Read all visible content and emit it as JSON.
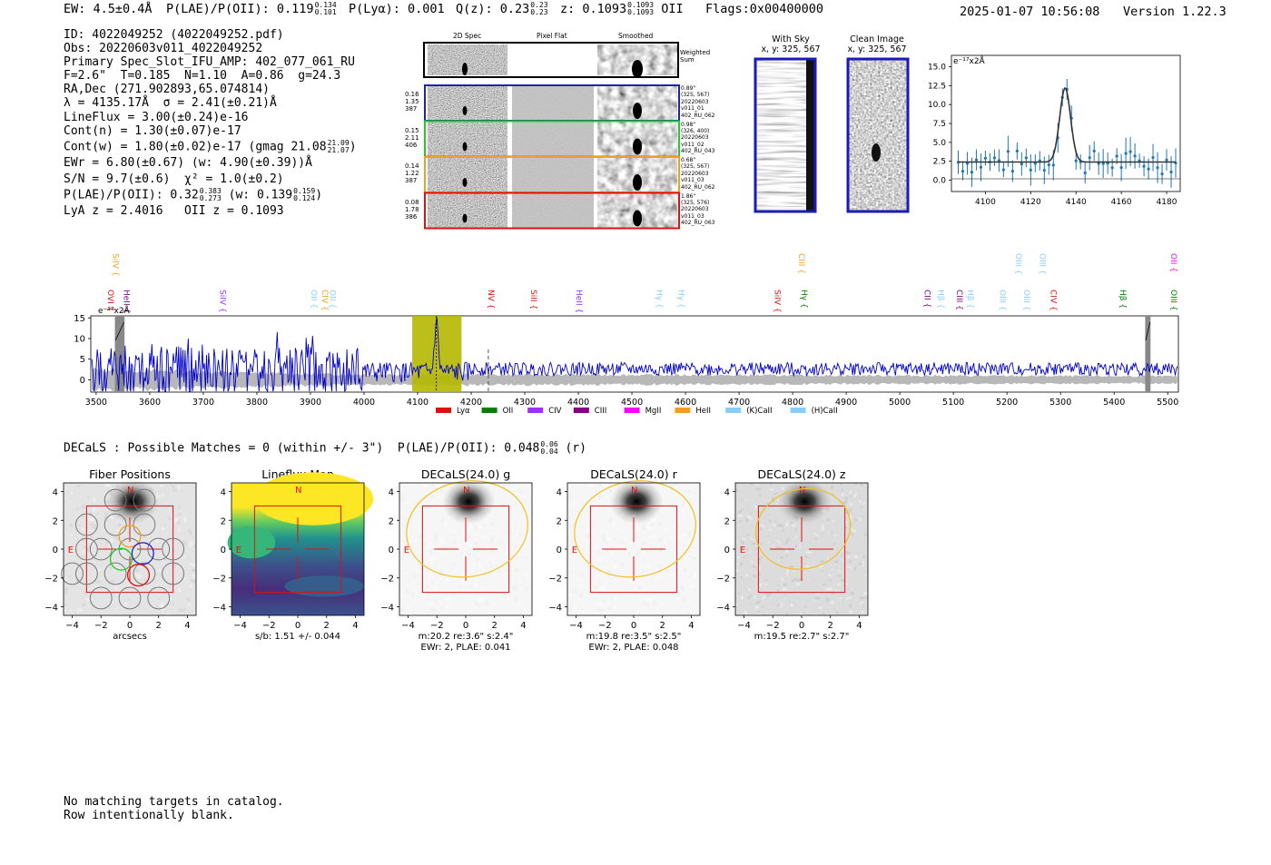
{
  "header": {
    "ew": "EW: 4.5±0.4Å",
    "plae_label": "P(LAE)/P(OII): 0.119",
    "plae_hi": "0.134",
    "plae_lo": "0.101",
    "plya": "P(Lyα): 0.001",
    "qz_label": "Q(z): 0.23",
    "qz_hi": "0.23",
    "qz_lo": "0.23",
    "z_label": "z: 0.1093",
    "z_hi": "0.1093",
    "z_lo": "0.1093",
    "z_line": "OII",
    "flags": "Flags:0x00400000",
    "timestamp": "2025-01-07 10:56:08",
    "version": "Version 1.22.3"
  },
  "info": {
    "id": "ID: 4022049252 (4022049252.pdf)",
    "obs": "Obs: 20220603v011_4022049252",
    "primary": "Primary Spec_Slot_IFU_AMP: 402_077_061_RU",
    "fiber_params": "F=2.6\"  T=0.185  N=1.10  A=0.86  g=24.3",
    "radec": "RA,Dec (271.902893,65.074814)",
    "lambda": "λ = 4135.17Å  σ = 2.41(±0.21)Å",
    "lineflux": "LineFlux = 3.00(±0.24)e-16",
    "cont_n": "Cont(n) = 1.30(±0.07)e-17",
    "cont_w": "Cont(w) = 1.80(±0.02)e-17 (gmag 21.08",
    "cont_w_hi": "21.09",
    "cont_w_lo": "21.07",
    "cont_w_end": ")",
    "ewr": "EWr = 6.80(±0.67) (w: 4.90(±0.39))Å",
    "sn": "S/N = 9.7(±0.6)  χ² = 1.0(±0.2)",
    "plae": "P(LAE)/P(OII): 0.32",
    "plae_hi": "0.383",
    "plae_lo": "0.273",
    "plae_w": "(w: 0.139",
    "plae_w_hi": "0.159",
    "plae_w_lo": "0.124",
    "plae_end": ")",
    "lya": "LyA z = 2.4016   OII z = 0.1093"
  },
  "cutouts": {
    "col_2d": "2D Spec",
    "col_flat": "Pixel Flat",
    "col_smooth": "Smoothed",
    "weighted": "Weighted Sum",
    "rows": [
      {
        "w1": "0.16",
        "w2": "1.35",
        "w3": "387",
        "d": "0.89\"",
        "xy": "(325, 567)",
        "n1": "20220603",
        "n2": "v011_01",
        "n3": "402_RU_062",
        "color": "#1f1fbf"
      },
      {
        "w1": "0.15",
        "w2": "2.11",
        "w3": "406",
        "d": "0.98\"",
        "xy": "(326, 400)",
        "n1": "20220603",
        "n2": "v011_02",
        "n3": "402_RU_043",
        "color": "#22cc22"
      },
      {
        "w1": "0.14",
        "w2": "1.22",
        "w3": "387",
        "d": "0.68\"",
        "xy": "(325, 567)",
        "n1": "20220603",
        "n2": "v011_03",
        "n3": "402_RU_062",
        "color": "#f0a020"
      },
      {
        "w1": "0.08",
        "w2": "1.78",
        "w3": "386",
        "d": "1.86\"",
        "xy": "(325, 576)",
        "n1": "20220603",
        "n2": "v011_03",
        "n3": "402_RU_063",
        "color": "#e01010"
      }
    ]
  },
  "sky": {
    "with_sky": "With Sky",
    "with_sky_xy": "x, y: 325, 567",
    "clean": "Clean Image",
    "clean_xy": "x, y: 325, 567"
  },
  "fit_plot": {
    "unit": "e⁻¹⁷x2Å",
    "yticks": [
      "15.0",
      "12.5",
      "10.0",
      "7.5",
      "5.0",
      "2.5",
      "0.0"
    ],
    "xticks": [
      "4100",
      "4120",
      "4140",
      "4160",
      "4180"
    ]
  },
  "spectrum": {
    "unit": "e⁻¹⁷x2Å",
    "yticks": [
      "15",
      "10",
      "5",
      "0"
    ],
    "xticks": [
      "3500",
      "3600",
      "3700",
      "3800",
      "3900",
      "4000",
      "4100",
      "4200",
      "4300",
      "4400",
      "4500",
      "4600",
      "4700",
      "4800",
      "4900",
      "5000",
      "5100",
      "5200",
      "5300",
      "5400",
      "5500"
    ],
    "lines_top": [
      {
        "label": "SiIV",
        "color": "#f0a020"
      },
      {
        "label": "CIII",
        "color": "#f0a020"
      },
      {
        "label": "OIII",
        "color": "#87cefa"
      },
      {
        "label": "OIII",
        "color": "#87cefa"
      },
      {
        "label": "OII",
        "color": "#ff00ff"
      }
    ],
    "lines_mid": [
      {
        "label": "OVI",
        "color": "#e01010"
      },
      {
        "label": "HeII",
        "color": "#800080"
      },
      {
        "label": "SiIV",
        "color": "#9b30ff"
      },
      {
        "label": "OII",
        "color": "#87cefa"
      },
      {
        "label": "CIV",
        "color": "#f0a020"
      },
      {
        "label": "OII",
        "color": "#87cefa"
      },
      {
        "label": "NV",
        "color": "#e01010"
      },
      {
        "label": "SiII",
        "color": "#e01010"
      },
      {
        "label": "HeII",
        "color": "#9b30ff"
      },
      {
        "label": "Hγ",
        "color": "#87cefa"
      },
      {
        "label": "Hγ",
        "color": "#87cefa"
      },
      {
        "label": "SiIV",
        "color": "#e01010"
      },
      {
        "label": "Hγ",
        "color": "#008000"
      },
      {
        "label": "CII",
        "color": "#800080"
      },
      {
        "label": "Hβ",
        "color": "#87cefa"
      },
      {
        "label": "CIII",
        "color": "#800080"
      },
      {
        "label": "Hβ",
        "color": "#87cefa"
      },
      {
        "label": "OIII",
        "color": "#87cefa"
      },
      {
        "label": "OIII",
        "color": "#87cefa"
      },
      {
        "label": "CIV",
        "color": "#e01010"
      },
      {
        "label": "Hβ",
        "color": "#008000"
      },
      {
        "label": "OIII",
        "color": "#008000"
      }
    ],
    "legend": [
      {
        "label": "Lyα",
        "color": "#e01010"
      },
      {
        "label": "OII",
        "color": "#008000"
      },
      {
        "label": "CIV",
        "color": "#9b30ff"
      },
      {
        "label": "CIII",
        "color": "#800080"
      },
      {
        "label": "MgII",
        "color": "#ff00ff"
      },
      {
        "label": "HeII",
        "color": "#f0a020"
      },
      {
        "label": "(K)CaII",
        "color": "#87cefa"
      },
      {
        "label": "(H)CaII",
        "color": "#87cefa"
      }
    ]
  },
  "decals": {
    "header": "DECaLS : Possible Matches = 0 (within +/- 3\")  P(LAE)/P(OII): 0.048",
    "hi": "0.06",
    "lo": "0.04",
    "band": "(r)",
    "panels": [
      {
        "title": "Fiber Positions",
        "cap1": "arcsecs",
        "cap2": ""
      },
      {
        "title": "Lineflux Map",
        "cap1": "s/b: 1.51 +/- 0.044",
        "cap2": ""
      },
      {
        "title": "DECaLS(24.0) g",
        "cap1": "m:20.2  re:3.6\"  s:2.4\"",
        "cap2": "EWr: 2, PLAE: 0.041"
      },
      {
        "title": "DECaLS(24.0) r",
        "cap1": "m:19.8  re:3.5\"  s:2.5\"",
        "cap2": "EWr: 2, PLAE: 0.048"
      },
      {
        "title": "DECaLS(24.0) z",
        "cap1": "m:19.5  re:2.7\"  s:2.7\"",
        "cap2": ""
      }
    ],
    "ticks": [
      "4",
      "2",
      "0",
      "−2",
      "−4"
    ],
    "xticks": [
      "−4",
      "−2",
      "0",
      "2",
      "4"
    ],
    "north": "N",
    "east": "E"
  },
  "footer": {
    "line1": "No matching targets in catalog.",
    "line2": "Row intentionally blank."
  },
  "colors": {
    "spectrum": "#0000cc",
    "fit": "#1f77b4",
    "highlight": "#b5b800",
    "error_band": "#b0b0b0"
  }
}
